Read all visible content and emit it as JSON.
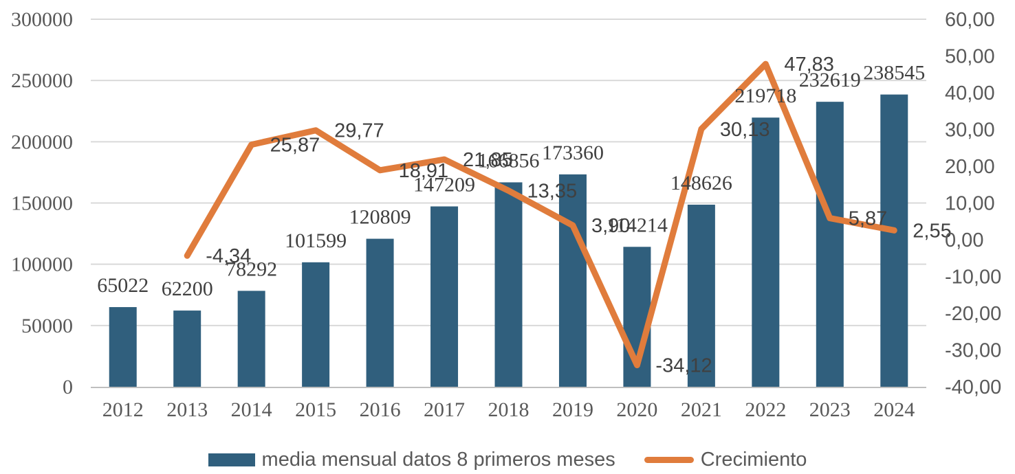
{
  "chart_data": {
    "type": "bar",
    "subtype": "combo-bar-line",
    "title": "",
    "categories": [
      "2012",
      "2013",
      "2014",
      "2015",
      "2016",
      "2017",
      "2018",
      "2019",
      "2020",
      "2021",
      "2022",
      "2023",
      "2024"
    ],
    "series": [
      {
        "name": "media mensual datos 8 primeros meses",
        "type": "bar",
        "axis": "left",
        "values": [
          65022,
          62200,
          78292,
          101599,
          120809,
          147209,
          166856,
          173360,
          114214,
          148626,
          219718,
          232619,
          238545
        ],
        "labels": [
          "65022",
          "62200",
          "78292",
          "101599",
          "120809",
          "147209",
          "166856",
          "173360",
          "114214",
          "148626",
          "219718",
          "232619",
          "238545"
        ]
      },
      {
        "name": "Crecimiento",
        "type": "line",
        "axis": "right",
        "values": [
          null,
          -4.34,
          25.87,
          29.77,
          18.91,
          21.85,
          13.35,
          3.9,
          -34.12,
          30.13,
          47.83,
          5.87,
          2.55
        ],
        "labels": [
          "",
          "-4,34",
          "25,87",
          "29,77",
          "18,91",
          "21,85",
          "13,35",
          "3,90",
          "-34,12",
          "30,13",
          "47,83",
          "5,87",
          "2,55"
        ]
      }
    ],
    "left_axis": {
      "min": 0,
      "max": 300000,
      "ticks": [
        "300000",
        "250000",
        "200000",
        "150000",
        "100000",
        "50000",
        "0"
      ]
    },
    "right_axis": {
      "min": -40,
      "max": 60,
      "ticks": [
        "60,00",
        "50,00",
        "40,00",
        "30,00",
        "20,00",
        "10,00",
        "0,00",
        "-10,00",
        "-20,00",
        "-30,00",
        "-40,00"
      ]
    },
    "grid": true,
    "legend_position": "bottom"
  },
  "colors": {
    "bar": "#305f7d",
    "line": "#e07c3c",
    "grid": "#d9d9d9",
    "axis_line": "#bfbfbf",
    "data_label_text": "#404040",
    "axis_text": "#595959"
  }
}
